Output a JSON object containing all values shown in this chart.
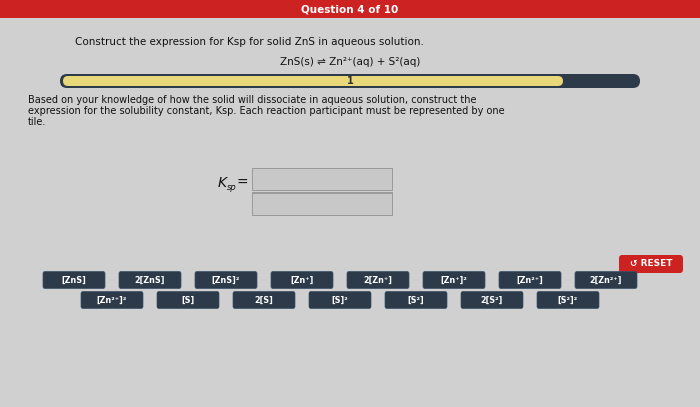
{
  "title": "Question 4 of 10",
  "title_bg": "#cc2222",
  "main_bg": "#c8c8c8",
  "content_bg": "#d4d4d4",
  "header_text": "Construct the expression for Ksp for solid ZnS in aqueous solution.",
  "equation": "ZnS(s) ⇌ Zn²⁺(aq) + S²(aq)",
  "body_text1": "Based on your knowledge of how the solid will dissociate in aqueous solution, construct the",
  "body_text2": "expression for the solubility constant, Ksp. Each reaction participant must be represented by one",
  "body_text3": "tile.",
  "progress_bar_bg": "#2c3a4a",
  "progress_bar_fill": "#e8d87a",
  "ksp_label": "K",
  "tile_bg": "#2c3a4a",
  "tile_fg": "#ffffff",
  "reset_bg": "#cc2222",
  "reset_text": "↺ RESET",
  "row1_tiles": [
    "[ZnS]",
    "2[ZnS]",
    "[ZnS]²",
    "[Zn⁺]",
    "2[Zn⁺]",
    "[Zn⁺]²",
    "[Zn²⁺]",
    "2[Zn²⁺]"
  ],
  "row2_tiles": [
    "[Zn²⁺]²",
    "[S]",
    "2[S]",
    "[S]²",
    "[S²]",
    "2[S²]",
    "[S²]²"
  ],
  "fig_width": 7.0,
  "fig_height": 4.07,
  "dpi": 100
}
